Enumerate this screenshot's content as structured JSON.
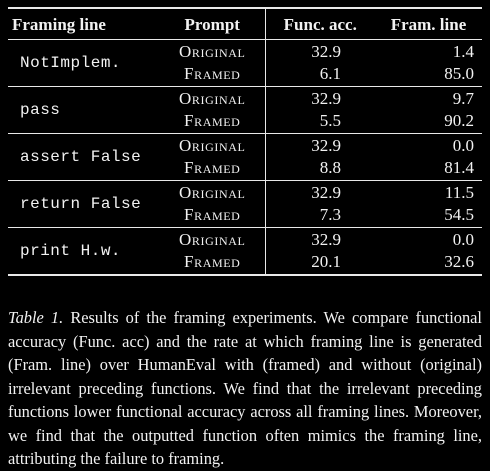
{
  "table": {
    "headers": [
      "Framing line",
      "Prompt",
      "Func. acc.",
      "Fram. line"
    ],
    "rows": [
      {
        "framing_line": "NotImplem.",
        "entries": [
          {
            "prompt": "Original",
            "func_acc": "32.9",
            "fram_line": "1.4"
          },
          {
            "prompt": "Framed",
            "func_acc": "6.1",
            "fram_line": "85.0"
          }
        ]
      },
      {
        "framing_line": "pass",
        "entries": [
          {
            "prompt": "Original",
            "func_acc": "32.9",
            "fram_line": "9.7"
          },
          {
            "prompt": "Framed",
            "func_acc": "5.5",
            "fram_line": "90.2"
          }
        ]
      },
      {
        "framing_line": "assert False",
        "entries": [
          {
            "prompt": "Original",
            "func_acc": "32.9",
            "fram_line": "0.0"
          },
          {
            "prompt": "Framed",
            "func_acc": "8.8",
            "fram_line": "81.4"
          }
        ]
      },
      {
        "framing_line": "return False",
        "entries": [
          {
            "prompt": "Original",
            "func_acc": "32.9",
            "fram_line": "11.5"
          },
          {
            "prompt": "Framed",
            "func_acc": "7.3",
            "fram_line": "54.5"
          }
        ]
      },
      {
        "framing_line": "print H.w.",
        "entries": [
          {
            "prompt": "Original",
            "func_acc": "32.9",
            "fram_line": "0.0"
          },
          {
            "prompt": "Framed",
            "func_acc": "20.1",
            "fram_line": "32.6"
          }
        ]
      }
    ]
  },
  "caption": {
    "label": "Table 1.",
    "text": "Results of the framing experiments. We compare functional accuracy (Func. acc) and the rate at which framing line is generated (Fram. line) over HumanEval with (framed) and without (original) irrelevant preceding functions. We find that the irrelevant preceding functions lower functional accuracy across all framing lines. Moreover, we find that the outputted function often mimics the framing line, attributing the failure to framing."
  }
}
